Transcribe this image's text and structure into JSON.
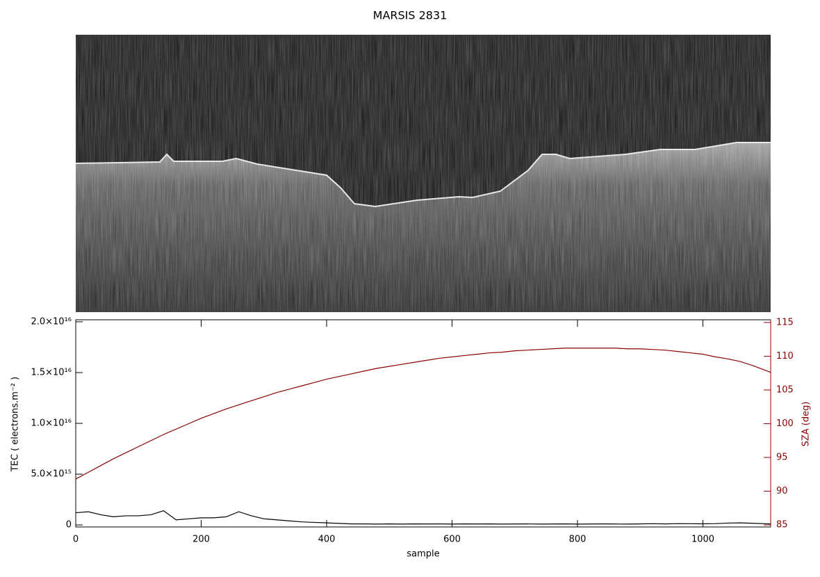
{
  "chart_data": {
    "type": "line",
    "title": "MARSIS 2831",
    "x_label": "sample",
    "y_label": "TEC ( electrons.m⁻² )",
    "y2_label": "SZA (deg)",
    "xlim": [
      0,
      1108
    ],
    "xticks": [
      0,
      200,
      400,
      600,
      800,
      1000
    ],
    "ylim": [
      -200000000000000.0,
      2.02e+16
    ],
    "yticks": [
      0,
      {
        "value": 5000000000000000.0,
        "label": "5.0×10¹⁵"
      },
      {
        "value": 1e+16,
        "label": "1.0×10¹⁶"
      },
      {
        "value": 1.5e+16,
        "label": "1.5×10¹⁶"
      },
      {
        "value": 2e+16,
        "label": "2.0×10¹⁶"
      }
    ],
    "y2lim": [
      84.7,
      115.4
    ],
    "y2ticks": [
      85,
      90,
      95,
      100,
      105,
      110,
      115
    ],
    "y2_color": "#8b0000",
    "x": [
      0,
      20,
      40,
      60,
      80,
      100,
      120,
      140,
      160,
      180,
      200,
      220,
      240,
      260,
      280,
      300,
      320,
      340,
      360,
      380,
      400,
      420,
      440,
      460,
      480,
      500,
      520,
      540,
      560,
      580,
      600,
      620,
      640,
      660,
      680,
      700,
      720,
      740,
      760,
      780,
      800,
      820,
      840,
      860,
      880,
      900,
      920,
      940,
      960,
      980,
      1000,
      1020,
      1040,
      1060,
      1080,
      1100,
      1108
    ],
    "series": [
      {
        "color": "#000000",
        "values": [
          1200000000000000.0,
          1300000000000000.0,
          1000000000000000.0,
          800000000000000.0,
          900000000000000.0,
          900000000000000.0,
          1000000000000000.0,
          1400000000000000.0,
          500000000000000.0,
          600000000000000.0,
          700000000000000.0,
          700000000000000.0,
          800000000000000.0,
          1300000000000000.0,
          900000000000000.0,
          600000000000000.0,
          500000000000000.0,
          400000000000000.0,
          300000000000000.0,
          250000000000000.0,
          200000000000000.0,
          150000000000000.0,
          100000000000000.0,
          100000000000000.0,
          80000000000000.0,
          100000000000000.0,
          80000000000000.0,
          100000000000000.0,
          90000000000000.0,
          100000000000000.0,
          80000000000000.0,
          100000000000000.0,
          90000000000000.0,
          100000000000000.0,
          80000000000000.0,
          90000000000000.0,
          100000000000000.0,
          80000000000000.0,
          90000000000000.0,
          100000000000000.0,
          80000000000000.0,
          90000000000000.0,
          100000000000000.0,
          90000000000000.0,
          80000000000000.0,
          100000000000000.0,
          120000000000000.0,
          100000000000000.0,
          130000000000000.0,
          120000000000000.0,
          110000000000000.0,
          130000000000000.0,
          180000000000000.0,
          200000000000000.0,
          160000000000000.0,
          120000000000000.0,
          100000000000000.0
        ]
      },
      {
        "color": "#8b0000",
        "axis": "y2",
        "values": [
          91.8,
          92.8,
          93.8,
          94.8,
          95.7,
          96.6,
          97.5,
          98.4,
          99.2,
          100.0,
          100.8,
          101.5,
          102.2,
          102.8,
          103.4,
          104.0,
          104.6,
          105.1,
          105.6,
          106.1,
          106.6,
          107.0,
          107.4,
          107.8,
          108.2,
          108.5,
          108.8,
          109.1,
          109.4,
          109.7,
          109.9,
          110.1,
          110.3,
          110.5,
          110.6,
          110.8,
          110.9,
          111.0,
          111.1,
          111.2,
          111.2,
          111.2,
          111.2,
          111.2,
          111.1,
          111.1,
          111.0,
          110.9,
          110.7,
          110.5,
          110.3,
          109.9,
          109.6,
          109.2,
          108.6,
          107.9,
          107.6
        ]
      }
    ]
  }
}
